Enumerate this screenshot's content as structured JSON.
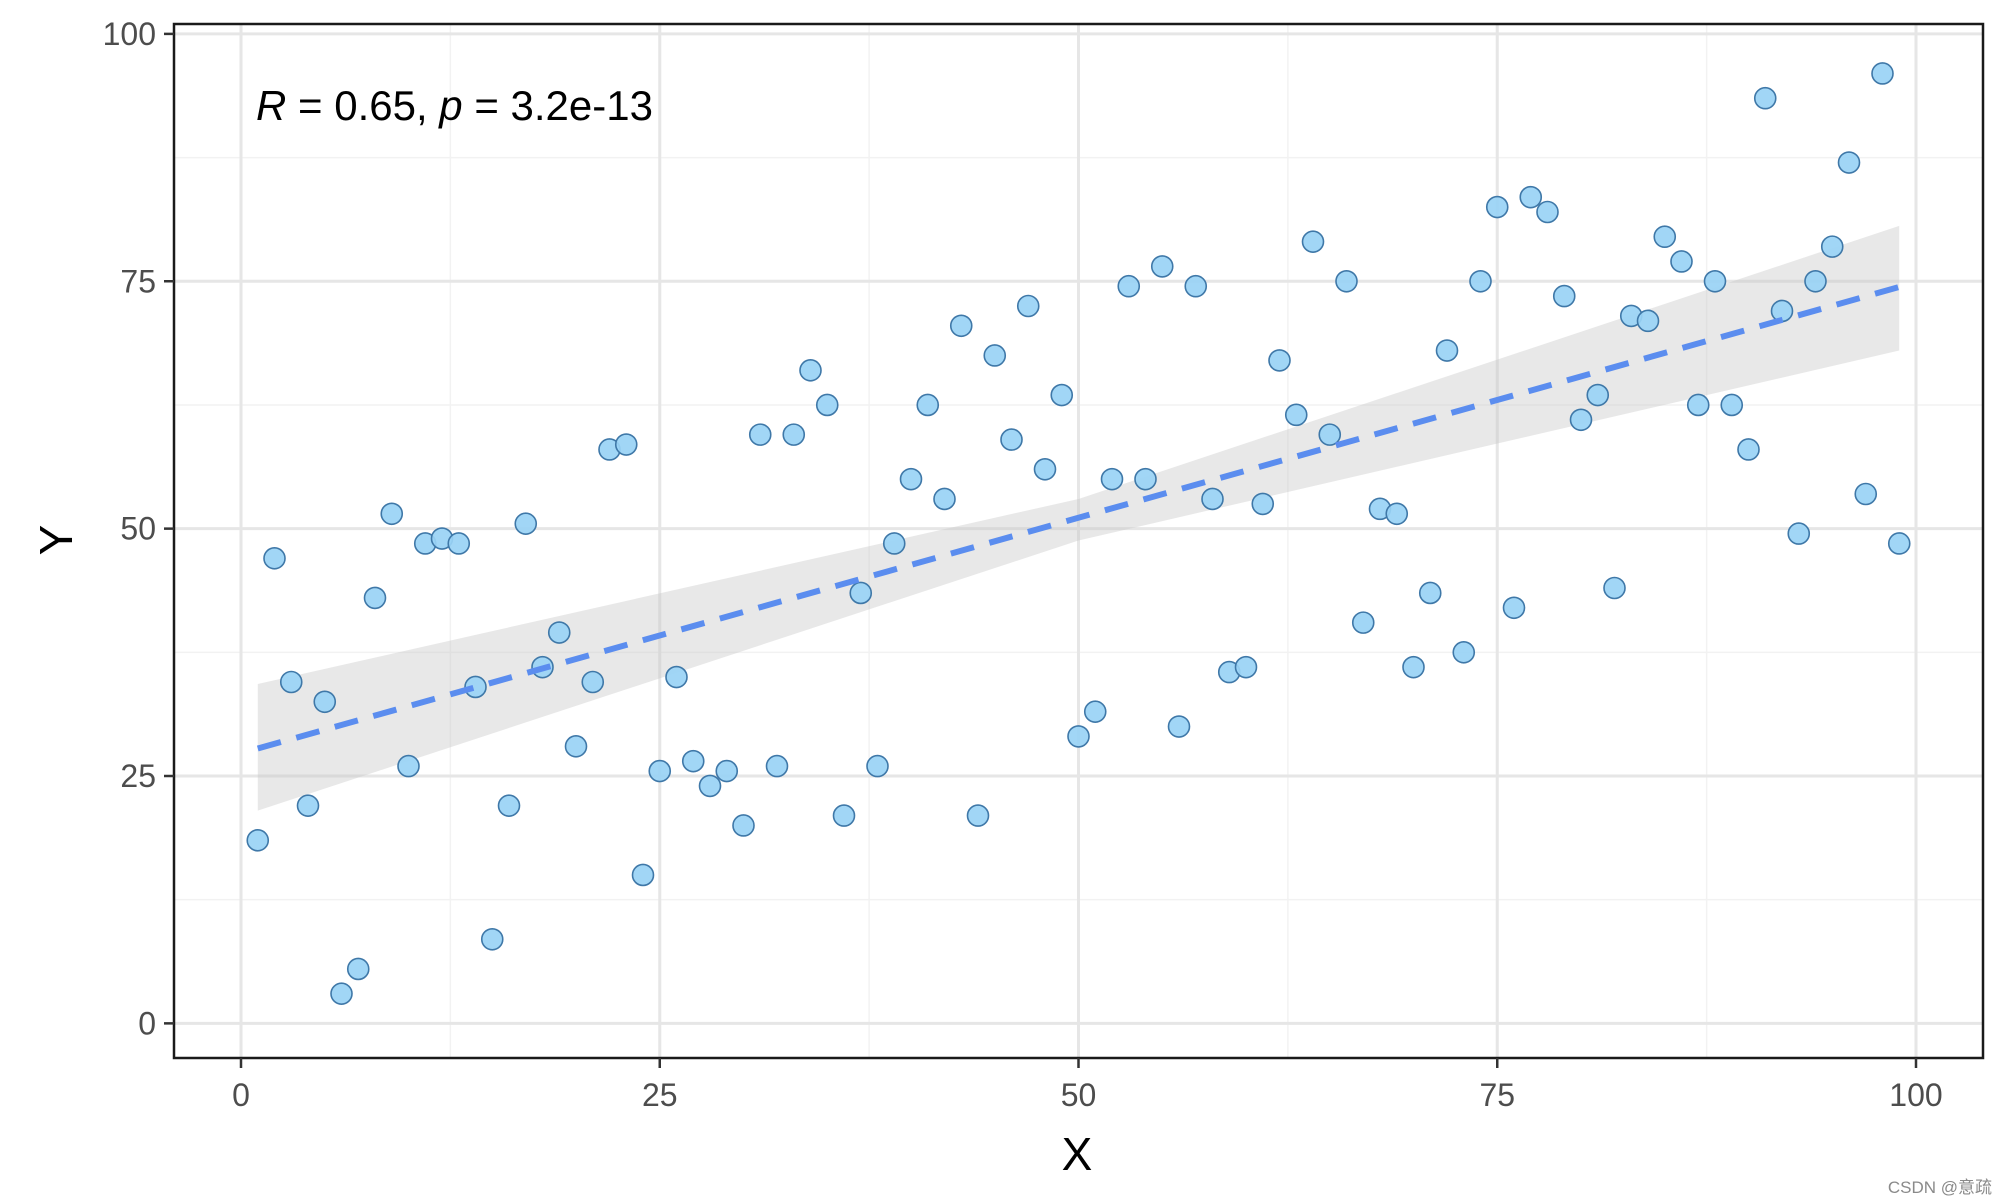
{
  "chart_data": {
    "type": "scatter",
    "title": "",
    "xlabel": "X",
    "ylabel": "Y",
    "xlim": [
      -4,
      104
    ],
    "ylim": [
      -3.5,
      101
    ],
    "x_ticks": [
      0,
      25,
      50,
      75,
      100
    ],
    "y_ticks": [
      0,
      25,
      50,
      75,
      100
    ],
    "x_tick_labels": [
      "0",
      "25",
      "50",
      "75",
      "100"
    ],
    "y_tick_labels": [
      "0",
      "25",
      "50",
      "75",
      "100"
    ],
    "minor_grid_x": [
      12.5,
      37.5,
      62.5,
      87.5
    ],
    "minor_grid_y": [
      12.5,
      37.5,
      62.5,
      87.5
    ],
    "grid": true,
    "annotation": {
      "r_symbol": "R",
      "r_text": " = 0.65, ",
      "p_symbol": "p",
      "p_text": " = 3.2e-13"
    },
    "regression": {
      "intercept": 27.3,
      "slope": 0.476,
      "x_range": [
        1,
        99
      ],
      "ci_lower": [
        [
          1,
          21.5
        ],
        [
          50,
          48.8
        ],
        [
          99,
          68.0
        ]
      ],
      "ci_upper": [
        [
          1,
          34.3
        ],
        [
          50,
          53.0
        ],
        [
          99,
          80.6
        ]
      ],
      "line_style": "dashed"
    },
    "points": [
      {
        "x": 1,
        "y": 18.5
      },
      {
        "x": 2,
        "y": 47
      },
      {
        "x": 3,
        "y": 34.5
      },
      {
        "x": 4,
        "y": 22
      },
      {
        "x": 5,
        "y": 32.5
      },
      {
        "x": 6,
        "y": 3
      },
      {
        "x": 7,
        "y": 5.5
      },
      {
        "x": 8,
        "y": 43
      },
      {
        "x": 9,
        "y": 51.5
      },
      {
        "x": 10,
        "y": 26
      },
      {
        "x": 11,
        "y": 48.5
      },
      {
        "x": 12,
        "y": 49
      },
      {
        "x": 13,
        "y": 48.5
      },
      {
        "x": 14,
        "y": 34
      },
      {
        "x": 15,
        "y": 8.5
      },
      {
        "x": 16,
        "y": 22
      },
      {
        "x": 17,
        "y": 50.5
      },
      {
        "x": 18,
        "y": 36
      },
      {
        "x": 19,
        "y": 39.5
      },
      {
        "x": 20,
        "y": 28
      },
      {
        "x": 21,
        "y": 34.5
      },
      {
        "x": 22,
        "y": 58
      },
      {
        "x": 23,
        "y": 58.5
      },
      {
        "x": 24,
        "y": 15
      },
      {
        "x": 25,
        "y": 25.5
      },
      {
        "x": 26,
        "y": 35
      },
      {
        "x": 27,
        "y": 26.5
      },
      {
        "x": 28,
        "y": 24
      },
      {
        "x": 29,
        "y": 25.5
      },
      {
        "x": 30,
        "y": 20
      },
      {
        "x": 31,
        "y": 59.5
      },
      {
        "x": 32,
        "y": 26
      },
      {
        "x": 33,
        "y": 59.5
      },
      {
        "x": 34,
        "y": 66
      },
      {
        "x": 35,
        "y": 62.5
      },
      {
        "x": 36,
        "y": 21
      },
      {
        "x": 37,
        "y": 43.5
      },
      {
        "x": 38,
        "y": 26
      },
      {
        "x": 39,
        "y": 48.5
      },
      {
        "x": 40,
        "y": 55
      },
      {
        "x": 41,
        "y": 62.5
      },
      {
        "x": 42,
        "y": 53
      },
      {
        "x": 43,
        "y": 70.5
      },
      {
        "x": 44,
        "y": 21
      },
      {
        "x": 45,
        "y": 67.5
      },
      {
        "x": 46,
        "y": 59
      },
      {
        "x": 47,
        "y": 72.5
      },
      {
        "x": 48,
        "y": 56
      },
      {
        "x": 49,
        "y": 63.5
      },
      {
        "x": 50,
        "y": 29
      },
      {
        "x": 51,
        "y": 31.5
      },
      {
        "x": 52,
        "y": 55
      },
      {
        "x": 53,
        "y": 74.5
      },
      {
        "x": 54,
        "y": 55
      },
      {
        "x": 55,
        "y": 76.5
      },
      {
        "x": 56,
        "y": 30
      },
      {
        "x": 57,
        "y": 74.5
      },
      {
        "x": 58,
        "y": 53
      },
      {
        "x": 59,
        "y": 35.5
      },
      {
        "x": 60,
        "y": 36
      },
      {
        "x": 61,
        "y": 52.5
      },
      {
        "x": 62,
        "y": 67
      },
      {
        "x": 63,
        "y": 61.5
      },
      {
        "x": 64,
        "y": 79
      },
      {
        "x": 65,
        "y": 59.5
      },
      {
        "x": 66,
        "y": 75
      },
      {
        "x": 67,
        "y": 40.5
      },
      {
        "x": 68,
        "y": 52
      },
      {
        "x": 69,
        "y": 51.5
      },
      {
        "x": 70,
        "y": 36
      },
      {
        "x": 71,
        "y": 43.5
      },
      {
        "x": 72,
        "y": 68
      },
      {
        "x": 73,
        "y": 37.5
      },
      {
        "x": 74,
        "y": 75
      },
      {
        "x": 75,
        "y": 82.5
      },
      {
        "x": 76,
        "y": 42
      },
      {
        "x": 77,
        "y": 83.5
      },
      {
        "x": 78,
        "y": 82
      },
      {
        "x": 79,
        "y": 73.5
      },
      {
        "x": 80,
        "y": 61
      },
      {
        "x": 81,
        "y": 63.5
      },
      {
        "x": 82,
        "y": 44
      },
      {
        "x": 83,
        "y": 71.5
      },
      {
        "x": 84,
        "y": 71
      },
      {
        "x": 85,
        "y": 79.5
      },
      {
        "x": 86,
        "y": 77
      },
      {
        "x": 87,
        "y": 62.5
      },
      {
        "x": 88,
        "y": 75
      },
      {
        "x": 89,
        "y": 62.5
      },
      {
        "x": 90,
        "y": 58
      },
      {
        "x": 91,
        "y": 93.5
      },
      {
        "x": 92,
        "y": 72
      },
      {
        "x": 93,
        "y": 49.5
      },
      {
        "x": 94,
        "y": 75
      },
      {
        "x": 95,
        "y": 78.5
      },
      {
        "x": 96,
        "y": 87
      },
      {
        "x": 97,
        "y": 53.5
      },
      {
        "x": 98,
        "y": 96
      },
      {
        "x": 99,
        "y": 48.5
      }
    ]
  },
  "colors": {
    "background": "#ffffff",
    "panel_border": "#1a1a1a",
    "grid_major": "#e6e6e6",
    "grid_minor": "#f2f2f2",
    "point_fill": "#99d3f5",
    "point_stroke": "#3f78a8",
    "band_fill": "#c9c9c9",
    "line": "#5b8def",
    "tick_text": "#4d4d4d"
  },
  "watermark": "CSDN @意疏"
}
